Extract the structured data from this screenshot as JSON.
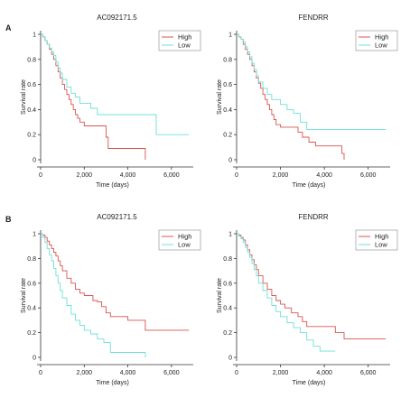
{
  "panel_labels": [
    "A",
    "B"
  ],
  "colors": {
    "high": "#d9534f",
    "low": "#6fe0d8",
    "axis": "#333333"
  },
  "chart_data": [
    {
      "type": "line",
      "panel": "A",
      "title": "AC092171.5",
      "xlabel": "Time (days)",
      "ylabel": "Survival rate",
      "xlim": [
        0,
        7000
      ],
      "ylim": [
        0,
        1
      ],
      "xticks": [
        0,
        2000,
        4000,
        6000
      ],
      "xtick_labels": [
        "0",
        "2,000",
        "4,000",
        "6,000"
      ],
      "yticks": [
        0,
        0.2,
        0.4,
        0.6,
        0.8,
        1
      ],
      "ytick_labels": [
        "0",
        "0.2",
        "0.4",
        "0.6",
        "0.8",
        "1"
      ],
      "legend": "top-right",
      "series": [
        {
          "name": "High",
          "color_key": "high",
          "x": [
            0,
            100,
            200,
            300,
            400,
            500,
            600,
            700,
            800,
            900,
            1000,
            1100,
            1200,
            1300,
            1400,
            1500,
            1600,
            1700,
            1800,
            2000,
            2200,
            2500,
            2800,
            3000,
            3100,
            3500,
            4000,
            4700,
            4800
          ],
          "y": [
            1,
            0.98,
            0.95,
            0.92,
            0.88,
            0.84,
            0.8,
            0.75,
            0.7,
            0.65,
            0.6,
            0.56,
            0.52,
            0.48,
            0.44,
            0.4,
            0.36,
            0.33,
            0.3,
            0.27,
            0.27,
            0.27,
            0.27,
            0.18,
            0.09,
            0.09,
            0.09,
            0.09,
            0
          ]
        },
        {
          "name": "Low",
          "color_key": "low",
          "x": [
            0,
            100,
            200,
            300,
            400,
            500,
            600,
            700,
            800,
            900,
            1000,
            1200,
            1400,
            1600,
            1800,
            2000,
            2300,
            2600,
            3000,
            3200,
            3500,
            4000,
            4500,
            5000,
            5300,
            6000,
            6800
          ],
          "y": [
            1,
            0.98,
            0.95,
            0.92,
            0.89,
            0.86,
            0.83,
            0.78,
            0.73,
            0.69,
            0.64,
            0.58,
            0.53,
            0.5,
            0.45,
            0.45,
            0.41,
            0.36,
            0.36,
            0.36,
            0.36,
            0.36,
            0.36,
            0.36,
            0.2,
            0.2,
            0.2
          ]
        }
      ]
    },
    {
      "type": "line",
      "panel": "A",
      "title": "FENDRR",
      "xlabel": "Time (days)",
      "ylabel": "Survival rate",
      "xlim": [
        0,
        7000
      ],
      "ylim": [
        0,
        1
      ],
      "xticks": [
        0,
        2000,
        4000,
        6000
      ],
      "xtick_labels": [
        "0",
        "2,000",
        "4,000",
        "6,000"
      ],
      "yticks": [
        0,
        0.2,
        0.4,
        0.6,
        0.8,
        1
      ],
      "ytick_labels": [
        "0",
        "0.2",
        "0.4",
        "0.6",
        "0.8",
        "1"
      ],
      "legend": "top-right",
      "series": [
        {
          "name": "High",
          "color_key": "high",
          "x": [
            0,
            100,
            200,
            300,
            400,
            500,
            600,
            700,
            800,
            900,
            1000,
            1100,
            1200,
            1300,
            1400,
            1500,
            1600,
            1700,
            1800,
            2000,
            2200,
            2500,
            2800,
            3000,
            3300,
            3600,
            4000,
            4500,
            4800,
            4900
          ],
          "y": [
            1,
            0.98,
            0.96,
            0.92,
            0.88,
            0.84,
            0.8,
            0.75,
            0.7,
            0.65,
            0.61,
            0.57,
            0.52,
            0.48,
            0.44,
            0.4,
            0.36,
            0.32,
            0.28,
            0.26,
            0.26,
            0.26,
            0.22,
            0.18,
            0.14,
            0.11,
            0.11,
            0.11,
            0.05,
            0
          ]
        },
        {
          "name": "Low",
          "color_key": "low",
          "x": [
            0,
            100,
            200,
            300,
            400,
            500,
            600,
            700,
            800,
            900,
            1000,
            1200,
            1400,
            1600,
            1800,
            2000,
            2300,
            2600,
            2900,
            3200,
            3500,
            4000,
            4500,
            5000,
            5500,
            6000,
            6800
          ],
          "y": [
            1,
            0.98,
            0.96,
            0.94,
            0.9,
            0.86,
            0.82,
            0.77,
            0.72,
            0.67,
            0.62,
            0.57,
            0.52,
            0.48,
            0.48,
            0.44,
            0.4,
            0.37,
            0.3,
            0.24,
            0.24,
            0.24,
            0.24,
            0.24,
            0.24,
            0.24,
            0.24
          ]
        }
      ]
    },
    {
      "type": "line",
      "panel": "B",
      "title": "AC092171.5",
      "xlabel": "Time (days)",
      "ylabel": "Survival rate",
      "xlim": [
        0,
        7000
      ],
      "ylim": [
        0,
        1
      ],
      "xticks": [
        0,
        2000,
        4000,
        6000
      ],
      "xtick_labels": [
        "0",
        "2,000",
        "4,000",
        "6,000"
      ],
      "yticks": [
        0,
        0.2,
        0.4,
        0.6,
        0.8,
        1
      ],
      "ytick_labels": [
        "0",
        "0.2",
        "0.4",
        "0.6",
        "0.8",
        "1"
      ],
      "legend": "top-right",
      "series": [
        {
          "name": "High",
          "color_key": "high",
          "x": [
            0,
            100,
            200,
            300,
            400,
            500,
            600,
            700,
            800,
            900,
            1000,
            1200,
            1400,
            1600,
            1800,
            2000,
            2200,
            2400,
            2600,
            2800,
            3000,
            3200,
            3600,
            4000,
            4500,
            4800,
            5000,
            5500,
            6000,
            6800
          ],
          "y": [
            1,
            0.99,
            0.97,
            0.94,
            0.91,
            0.88,
            0.85,
            0.82,
            0.78,
            0.74,
            0.7,
            0.64,
            0.6,
            0.55,
            0.52,
            0.5,
            0.5,
            0.46,
            0.45,
            0.41,
            0.36,
            0.33,
            0.33,
            0.3,
            0.3,
            0.22,
            0.22,
            0.22,
            0.22,
            0.22
          ]
        },
        {
          "name": "Low",
          "color_key": "low",
          "x": [
            0,
            100,
            200,
            300,
            400,
            500,
            600,
            700,
            800,
            900,
            1000,
            1200,
            1400,
            1600,
            1800,
            2000,
            2300,
            2600,
            2900,
            3200,
            3500,
            4000,
            4500,
            4800
          ],
          "y": [
            1,
            0.97,
            0.93,
            0.88,
            0.83,
            0.78,
            0.72,
            0.66,
            0.6,
            0.54,
            0.48,
            0.42,
            0.35,
            0.3,
            0.26,
            0.22,
            0.19,
            0.15,
            0.12,
            0.04,
            0.04,
            0.04,
            0.04,
            0
          ]
        }
      ]
    },
    {
      "type": "line",
      "panel": "B",
      "title": "FENDRR",
      "xlabel": "Time (days)",
      "ylabel": "Survival rate",
      "xlim": [
        0,
        7000
      ],
      "ylim": [
        0,
        1
      ],
      "xticks": [
        0,
        2000,
        4000,
        6000
      ],
      "xtick_labels": [
        "0",
        "2,000",
        "4,000",
        "6,000"
      ],
      "yticks": [
        0,
        0.2,
        0.4,
        0.6,
        0.8,
        1
      ],
      "ytick_labels": [
        "0",
        "0.2",
        "0.4",
        "0.6",
        "0.8",
        "1"
      ],
      "legend": "top-right",
      "series": [
        {
          "name": "High",
          "color_key": "high",
          "x": [
            0,
            100,
            200,
            300,
            400,
            500,
            600,
            700,
            800,
            900,
            1000,
            1200,
            1400,
            1600,
            1800,
            2000,
            2200,
            2500,
            2800,
            3000,
            3200,
            3600,
            4000,
            4500,
            4900,
            5200,
            5600,
            6000,
            6800
          ],
          "y": [
            1,
            0.99,
            0.97,
            0.95,
            0.91,
            0.87,
            0.83,
            0.79,
            0.75,
            0.71,
            0.66,
            0.6,
            0.55,
            0.5,
            0.46,
            0.43,
            0.4,
            0.36,
            0.33,
            0.29,
            0.25,
            0.25,
            0.25,
            0.2,
            0.15,
            0.15,
            0.15,
            0.15,
            0.15
          ]
        },
        {
          "name": "Low",
          "color_key": "low",
          "x": [
            0,
            100,
            200,
            300,
            400,
            500,
            600,
            700,
            800,
            900,
            1000,
            1200,
            1400,
            1600,
            1800,
            2000,
            2300,
            2600,
            2900,
            3200,
            3500,
            3800,
            4100,
            4500
          ],
          "y": [
            1,
            0.98,
            0.96,
            0.93,
            0.89,
            0.85,
            0.81,
            0.76,
            0.71,
            0.66,
            0.6,
            0.54,
            0.48,
            0.42,
            0.37,
            0.33,
            0.28,
            0.24,
            0.2,
            0.14,
            0.09,
            0.05,
            0.05,
            0.05
          ]
        }
      ]
    }
  ]
}
